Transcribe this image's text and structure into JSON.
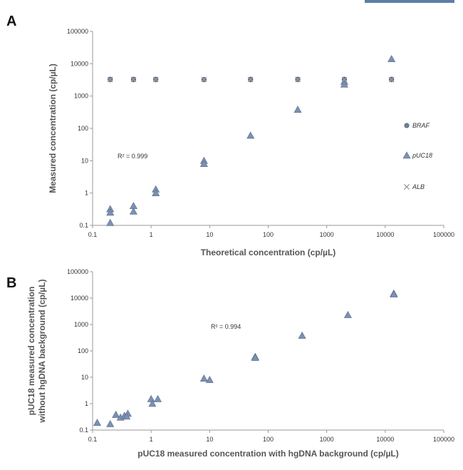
{
  "panels": {
    "a_letter": "A",
    "b_letter": "B"
  },
  "chart_data": [
    {
      "type": "scatter",
      "xlabel": "Theoretical concentration (cp/µL)",
      "ylabel": "Measured concentration (cp/µL)",
      "xscale": "log",
      "yscale": "log",
      "xlim": [
        0.1,
        100000
      ],
      "ylim": [
        0.1,
        100000
      ],
      "xticks": [
        "0.1",
        "1",
        "10",
        "100",
        "1000",
        "10000",
        "100000"
      ],
      "yticks": [
        "0.1",
        "1",
        "10",
        "100",
        "1000",
        "10000",
        "100000"
      ],
      "annotation": "R² = 0.999",
      "legend_position": "right",
      "series": [
        {
          "name": "BRAF",
          "marker": "circle",
          "color": "#6a7f9a",
          "x": [
            0.2,
            0.2,
            0.5,
            0.5,
            1.2,
            1.2,
            8,
            8,
            50,
            50,
            320,
            320,
            2000,
            2000,
            12800,
            12800
          ],
          "y": [
            3300,
            3200,
            3300,
            3200,
            3300,
            3200,
            3250,
            3200,
            3300,
            3200,
            3300,
            3200,
            3300,
            3200,
            3300,
            3200
          ]
        },
        {
          "name": "pUC18",
          "marker": "triangle",
          "color": "#7b91b3",
          "x": [
            0.2,
            0.2,
            0.2,
            0.5,
            0.5,
            1.2,
            1.2,
            8,
            8,
            50,
            320,
            2000,
            2000,
            12800
          ],
          "y": [
            0.32,
            0.25,
            0.12,
            0.4,
            0.27,
            1.3,
            1.0,
            10,
            8,
            60,
            380,
            2800,
            2300,
            14000
          ]
        },
        {
          "name": "ALB",
          "marker": "x",
          "color": "#444444",
          "x": [
            0.2,
            0.5,
            1.2,
            8,
            50,
            320,
            2000,
            12800
          ],
          "y": [
            3250,
            3250,
            3250,
            3250,
            3250,
            3250,
            3250,
            3250
          ]
        }
      ]
    },
    {
      "type": "scatter",
      "xlabel": "pUC18 measured concentration with hgDNA background (cp/µL)",
      "ylabel_lines": [
        "pUC18 measured concentration",
        "without hgDNA background (cp/µL)"
      ],
      "xscale": "log",
      "yscale": "log",
      "xlim": [
        0.1,
        100000
      ],
      "ylim": [
        0.1,
        100000
      ],
      "xticks": [
        "0.1",
        "1",
        "10",
        "100",
        "1000",
        "10000",
        "100000"
      ],
      "yticks": [
        "0.1",
        "1",
        "10",
        "100",
        "1000",
        "10000",
        "100000"
      ],
      "annotation": "R² = 0.994",
      "series": [
        {
          "marker": "triangle",
          "color": "#7b91b3",
          "x": [
            0.12,
            0.2,
            0.25,
            0.3,
            0.35,
            0.4,
            0.38,
            1.0,
            1.05,
            1.3,
            8,
            10,
            60,
            60,
            380,
            2300,
            14000,
            14000
          ],
          "y": [
            0.19,
            0.17,
            0.38,
            0.3,
            0.35,
            0.42,
            0.33,
            1.5,
            1.0,
            1.5,
            9,
            8,
            60,
            55,
            380,
            2300,
            15000,
            14000
          ]
        }
      ]
    }
  ]
}
